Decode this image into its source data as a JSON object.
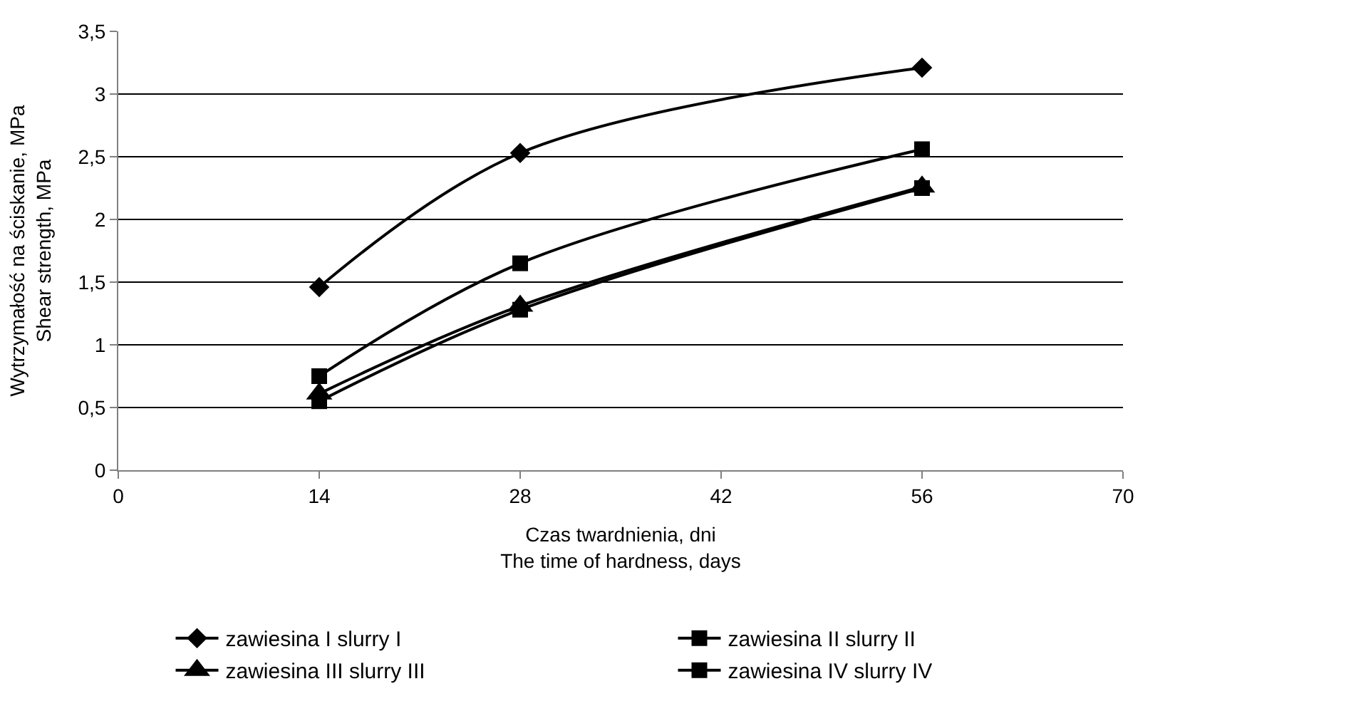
{
  "chart_data": {
    "type": "line",
    "xlabel": "Czas twardnienia, dni\nThe time of hardness, days",
    "ylabel": "Wytrzymałość na ściskanie, MPa\nShear strength, MPa",
    "x": [
      14,
      28,
      56
    ],
    "series": [
      {
        "name": "zawiesina I slurry I",
        "color": "#000000",
        "marker": "diamond",
        "values": [
          1.46,
          2.53,
          3.21
        ]
      },
      {
        "name": "zawiesina II slurry II",
        "color": "#000000",
        "marker": "square",
        "values": [
          0.75,
          1.65,
          2.56
        ]
      },
      {
        "name": "zawiesina III slurry III",
        "color": "#000000",
        "marker": "triangle",
        "values": [
          0.61,
          1.31,
          2.26
        ]
      },
      {
        "name": "zawiesina IV slurry IV",
        "color": "#000000",
        "marker": "square",
        "values": [
          0.55,
          1.28,
          2.25
        ]
      }
    ],
    "xlim": [
      0,
      70
    ],
    "xticks": [
      0,
      14,
      28,
      42,
      56,
      70
    ],
    "ylim": [
      0,
      3.5
    ],
    "yticks": [
      {
        "value": 0,
        "label": "0"
      },
      {
        "value": 0.5,
        "label": "0,5"
      },
      {
        "value": 1,
        "label": "1"
      },
      {
        "value": 1.5,
        "label": "1,5"
      },
      {
        "value": 2,
        "label": "2"
      },
      {
        "value": 2.5,
        "label": "2,5"
      },
      {
        "value": 3,
        "label": "3"
      },
      {
        "value": 3.5,
        "label": "3,5"
      }
    ],
    "grid": "y",
    "legend": "bottom",
    "line_style": "solid"
  }
}
